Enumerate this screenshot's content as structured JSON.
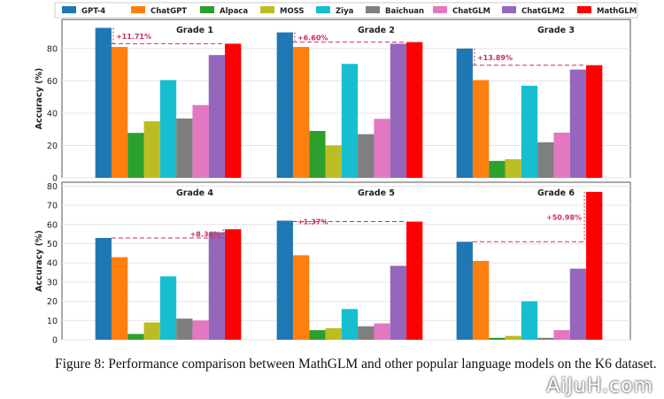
{
  "chart_data": {
    "type": "bar",
    "ylabel": "Accuracy (%)",
    "series": [
      "GPT-4",
      "ChatGPT",
      "Alpaca",
      "MOSS",
      "Ziya",
      "Baichuan",
      "ChatGLM",
      "ChatGLM2",
      "MathGLM"
    ],
    "colors": [
      "#1f77b4",
      "#ff7f0e",
      "#2ca02c",
      "#bcbd22",
      "#17becf",
      "#7f7f7f",
      "#e377c2",
      "#9467bd",
      "#ff0000"
    ],
    "annotation_color": "#c8305a",
    "rows": [
      {
        "ylim": [
          0,
          98
        ],
        "yticks": [
          "0",
          "20",
          "40",
          "60",
          "80"
        ],
        "tick_values": [
          0,
          20,
          40,
          60,
          80
        ],
        "panels": [
          {
            "title": "Grade 1",
            "values": [
              92.8,
              81,
              27.8,
              35,
              60.5,
              36.7,
              45,
              76,
              83
            ],
            "annotation": "+11.71%"
          },
          {
            "title": "Grade 2",
            "values": [
              90,
              81,
              29,
              20,
              70.5,
              27,
              36.5,
              83,
              84
            ],
            "annotation": "+6.60%"
          },
          {
            "title": "Grade 3",
            "values": [
              80,
              60.5,
              10.5,
              11.5,
              57,
              22,
              28,
              67,
              69.7
            ],
            "annotation": "+13.89%"
          }
        ]
      },
      {
        "ylim": [
          0,
          82
        ],
        "yticks": [
          "0",
          "10",
          "20",
          "30",
          "40",
          "50",
          "60",
          "70",
          "80"
        ],
        "tick_values": [
          0,
          10,
          20,
          30,
          40,
          50,
          60,
          70,
          80
        ],
        "panels": [
          {
            "title": "Grade 4",
            "values": [
              53,
              43,
              3,
              9,
              33,
              11,
              10,
              56,
              57.5
            ],
            "annotation": "+8.34%"
          },
          {
            "title": "Grade 5",
            "values": [
              62,
              44,
              5,
              6,
              16,
              7,
              8.5,
              38.5,
              61.5
            ],
            "annotation": "+1.37%"
          },
          {
            "title": "Grade 6",
            "values": [
              51,
              41,
              1,
              2,
              20,
              1,
              5,
              37,
              77
            ],
            "annotation": "+50.98%"
          }
        ]
      }
    ]
  },
  "caption": "Figure 8: Performance comparison between MathGLM and other popular language models on the K6 dataset.",
  "watermark": "AiJuH.com"
}
